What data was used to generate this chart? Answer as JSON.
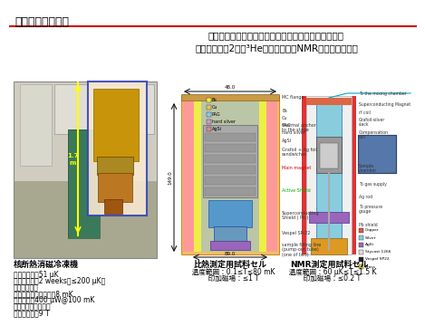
{
  "title": "核断熱消磁冷凍機",
  "red_line_color": "#cc0000",
  "bg_color": "#ffffff",
  "title_fontsize": 9,
  "body_text_center": "世界有数の最低温度と保持時間をもち、サイズもコン\nパクト。主に2次元³Heの比熱およびNMR測定に使用中。",
  "body_fontsize": 7.5,
  "left_caption_title": "核断熱消磁冷凍機",
  "left_caption_lines": [
    "　最低温度：51 μK",
    "　保持時間：2 weeks（≤200 μK）",
    "希釈冷凍機部",
    "　無負荷時最低温度：8 mK",
    "　冷却力：400 μW@100 mK",
    "超伝導マグネット部",
    "　最大磁場：9 T"
  ],
  "caption_fontsize": 5.5,
  "bottom_left_title": "比熱測定用試料セル",
  "bottom_left_lines": [
    "　温度範囲：0.1≤T≤80 mK",
    "　印加磁場：≤1 T"
  ],
  "bottom_right_title": "NMR測定用試料セル",
  "bottom_right_lines": [
    "　温度範囲：60 μK≤T≤1.5 K",
    "　印加磁場：≤0.2 T"
  ],
  "section_title_fontsize": 6.5,
  "section_body_fontsize": 5.5
}
